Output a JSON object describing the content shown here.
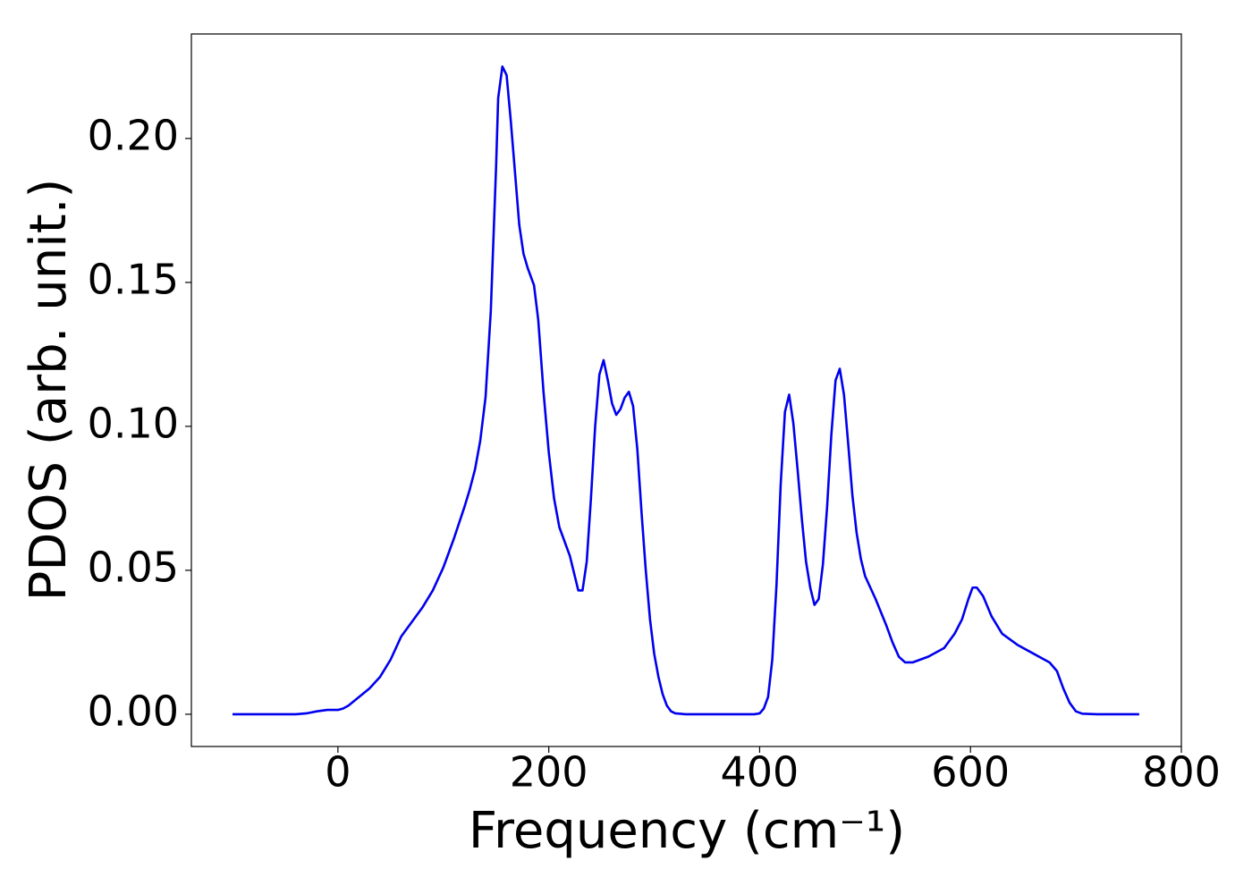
{
  "chart_data": {
    "type": "line",
    "xlabel": "Frequency (cm⁻¹)",
    "ylabel": "PDOS (arb. unit.)",
    "x": [
      -100,
      -40,
      -30,
      -20,
      -10,
      0,
      5,
      10,
      20,
      30,
      40,
      50,
      55,
      60,
      70,
      80,
      90,
      100,
      110,
      120,
      125,
      130,
      135,
      140,
      145,
      150,
      152,
      156,
      160,
      164,
      168,
      172,
      176,
      180,
      186,
      190,
      195,
      200,
      205,
      210,
      220,
      228,
      232,
      236,
      240,
      244,
      248,
      252,
      256,
      260,
      264,
      268,
      272,
      276,
      280,
      284,
      288,
      292,
      296,
      300,
      304,
      308,
      312,
      316,
      320,
      330,
      395,
      400,
      404,
      408,
      412,
      416,
      420,
      424,
      428,
      432,
      436,
      440,
      444,
      448,
      452,
      456,
      460,
      464,
      468,
      472,
      476,
      480,
      484,
      488,
      492,
      496,
      500,
      510,
      520,
      526,
      532,
      538,
      545,
      560,
      575,
      585,
      592,
      598,
      602,
      606,
      612,
      620,
      630,
      645,
      660,
      675,
      682,
      688,
      694,
      700,
      706,
      720,
      760
    ],
    "values": [
      0,
      0,
      0.0003,
      0.001,
      0.0015,
      0.0015,
      0.002,
      0.003,
      0.006,
      0.009,
      0.013,
      0.019,
      0.023,
      0.027,
      0.032,
      0.037,
      0.043,
      0.051,
      0.061,
      0.072,
      0.078,
      0.085,
      0.095,
      0.11,
      0.14,
      0.19,
      0.214,
      0.225,
      0.222,
      0.206,
      0.188,
      0.17,
      0.16,
      0.155,
      0.149,
      0.137,
      0.112,
      0.091,
      0.075,
      0.065,
      0.055,
      0.043,
      0.043,
      0.053,
      0.075,
      0.1,
      0.118,
      0.123,
      0.116,
      0.108,
      0.104,
      0.106,
      0.11,
      0.112,
      0.107,
      0.092,
      0.07,
      0.05,
      0.033,
      0.021,
      0.013,
      0.007,
      0.003,
      0.001,
      0.0003,
      0,
      0,
      0.0003,
      0.002,
      0.006,
      0.019,
      0.045,
      0.08,
      0.105,
      0.111,
      0.101,
      0.085,
      0.068,
      0.053,
      0.044,
      0.038,
      0.04,
      0.052,
      0.072,
      0.097,
      0.116,
      0.12,
      0.111,
      0.094,
      0.076,
      0.063,
      0.054,
      0.048,
      0.04,
      0.031,
      0.025,
      0.02,
      0.018,
      0.018,
      0.02,
      0.023,
      0.028,
      0.033,
      0.04,
      0.044,
      0.044,
      0.041,
      0.034,
      0.028,
      0.024,
      0.021,
      0.018,
      0.015,
      0.009,
      0.004,
      0.001,
      0.0002,
      0,
      0
    ],
    "color": "#0000ee",
    "xlim": [
      -139,
      800
    ],
    "xticks": [
      0,
      200,
      400,
      600,
      800
    ],
    "ylim": [
      -0.0112,
      0.2363
    ],
    "yticks": [
      {
        "value": 0,
        "label": "0.00"
      },
      {
        "value": 0.05,
        "label": "0.05"
      },
      {
        "value": 0.1,
        "label": "0.10"
      },
      {
        "value": 0.15,
        "label": "0.15"
      },
      {
        "value": 0.2,
        "label": "0.20"
      }
    ],
    "grid": false
  }
}
